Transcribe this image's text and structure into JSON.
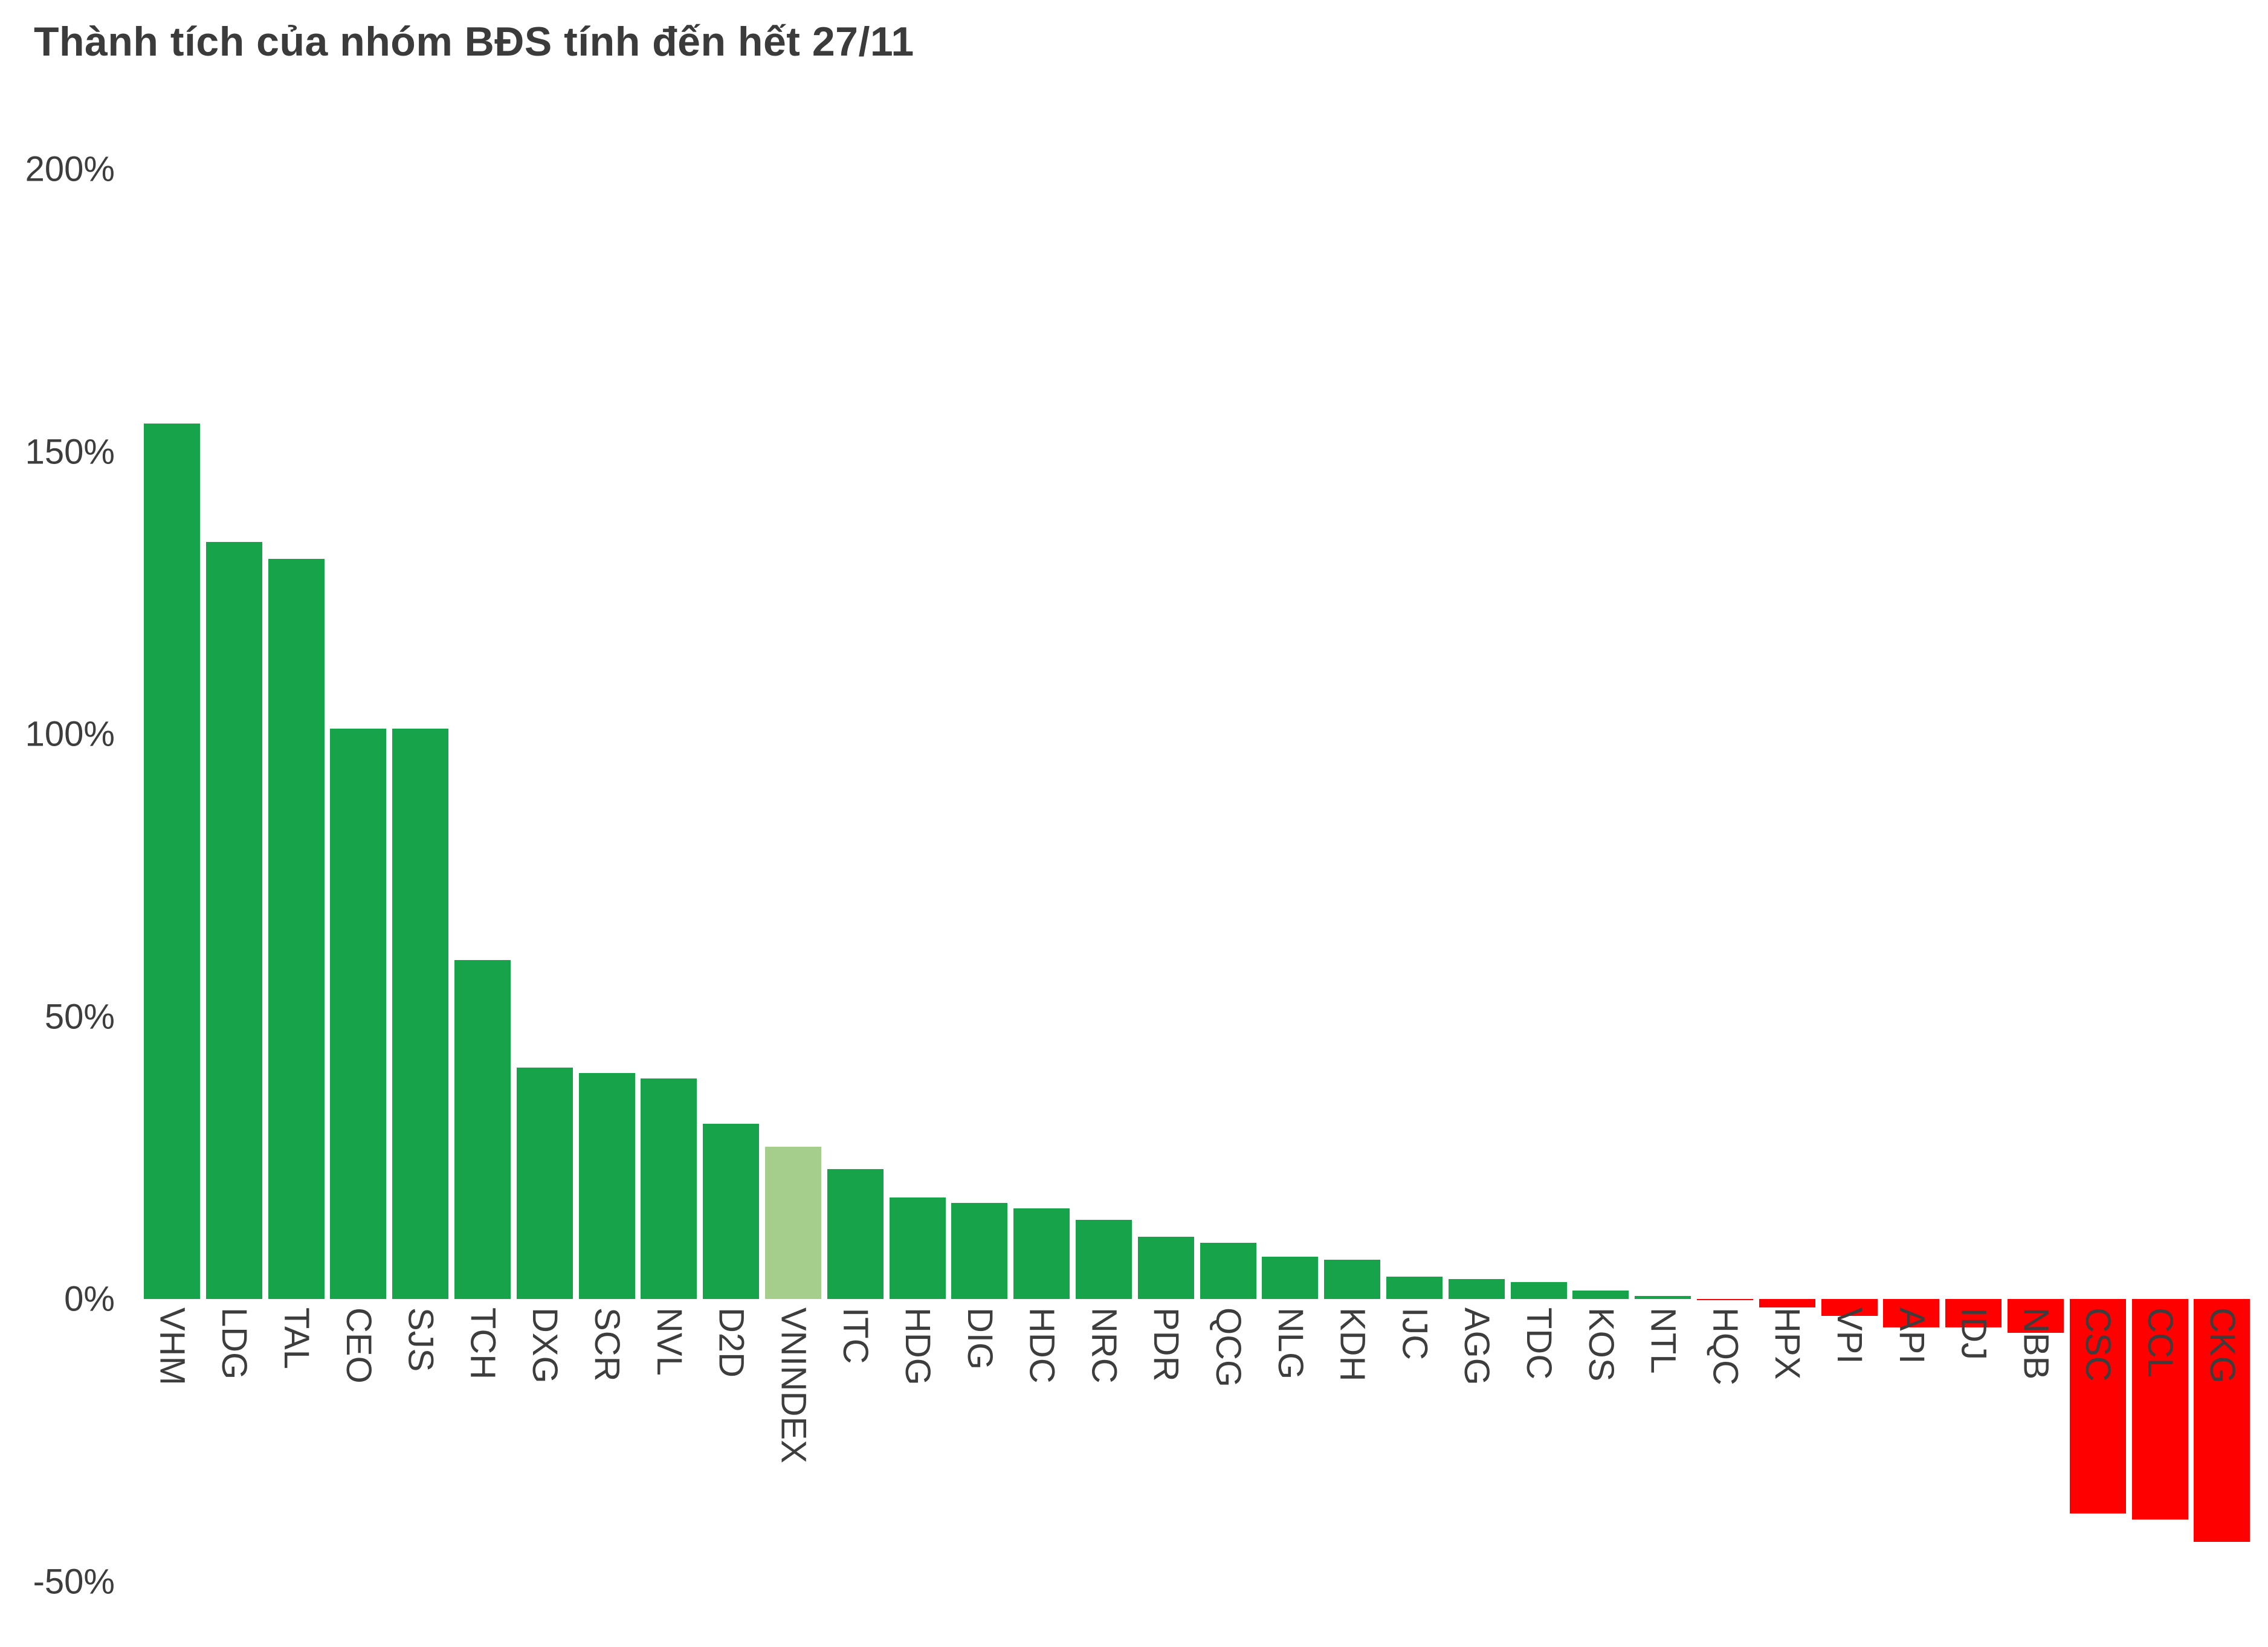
{
  "title": "Thành tích của nhóm BĐS tính đến hết 27/11",
  "colors": {
    "positive_bar": "#16a34a",
    "highlight_bar": "#a5cd8b",
    "negative_bar": "#fe0000",
    "title_text": "#3b3b3b",
    "axis_text": "#3d3d3d"
  },
  "chart_data": {
    "type": "bar",
    "title": "Thành tích của nhóm BĐS tính đến hết 27/11",
    "xlabel": "",
    "ylabel": "",
    "unit": "%",
    "ylim": [
      -50,
      200
    ],
    "grid": false,
    "legend": "none",
    "bar_label_rotation": "vertical",
    "highlight_category": "VNINDEX",
    "yticks": [
      {
        "value": 200,
        "label": "200%"
      },
      {
        "value": 150,
        "label": "150%"
      },
      {
        "value": 100,
        "label": "100%"
      },
      {
        "value": 50,
        "label": "50%"
      },
      {
        "value": 0,
        "label": "0%"
      },
      {
        "value": -50,
        "label": "-50%"
      }
    ],
    "categories": [
      "VHM",
      "LDG",
      "TAL",
      "CEO",
      "SJS",
      "TCH",
      "DXG",
      "SCR",
      "NVL",
      "D2D",
      "VNINDEX",
      "ITC",
      "HDG",
      "DIG",
      "HDC",
      "NRC",
      "PDR",
      "QCG",
      "NLG",
      "KDH",
      "IJC",
      "AGG",
      "TDC",
      "KOS",
      "NTL",
      "HQC",
      "HPX",
      "VPI",
      "API",
      "IDJ",
      "NBB",
      "CSC",
      "CCL",
      "CKG"
    ],
    "values": [
      155,
      134,
      131,
      101,
      101,
      60,
      41,
      40,
      39,
      31,
      27,
      23,
      18,
      17,
      16,
      14,
      11,
      10,
      7.5,
      7,
      4,
      3.5,
      3,
      1.5,
      0.5,
      -0.2,
      -1.5,
      -3,
      -5,
      -5,
      -6,
      -38,
      -39,
      -43
    ]
  }
}
